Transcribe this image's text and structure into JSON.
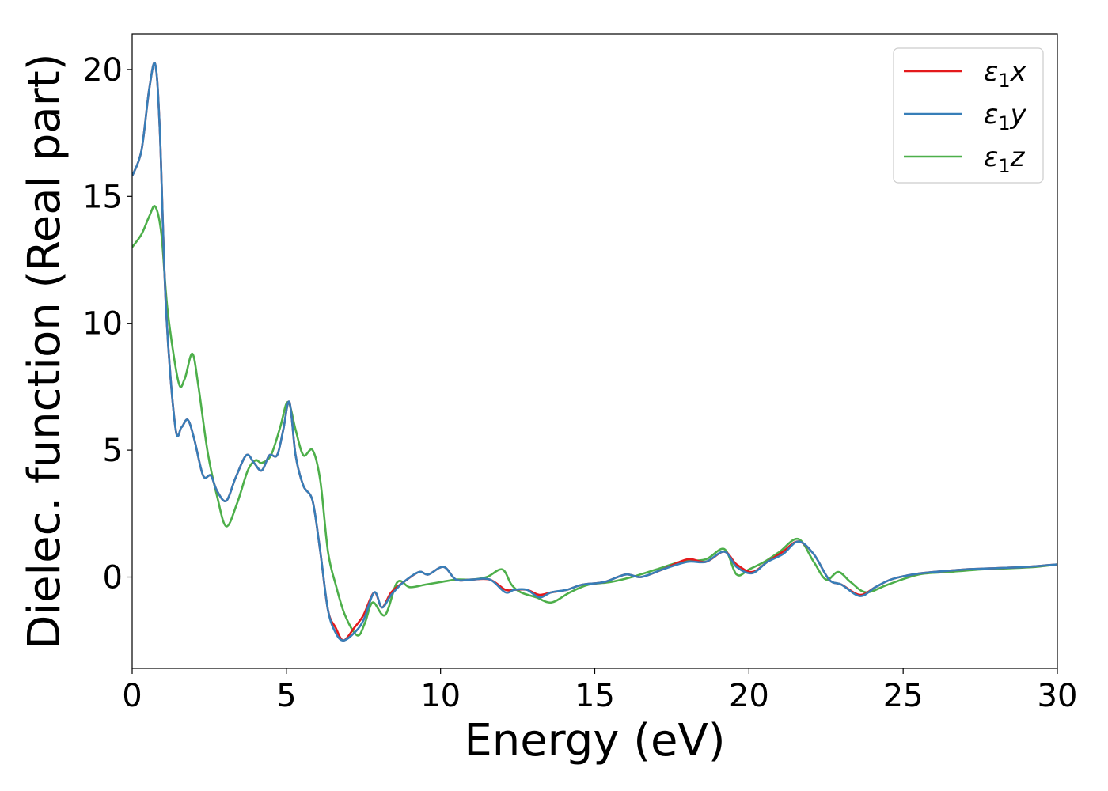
{
  "chart_data": {
    "type": "line",
    "xlabel": "Energy (eV)",
    "ylabel": "Dielec. function (Real part)",
    "xlim": [
      0,
      30
    ],
    "ylim": [
      -3.6,
      21.4
    ],
    "xticks": [
      0,
      5,
      10,
      15,
      20,
      25,
      30
    ],
    "yticks": [
      0,
      5,
      10,
      15,
      20
    ],
    "legend_position": "top-right",
    "grid": false,
    "series": [
      {
        "name": "ε1x",
        "legend_main": "ε",
        "legend_sub": "1",
        "legend_var": "x",
        "color": "#e41a1c",
        "x": [
          0,
          0.3,
          0.55,
          0.75,
          0.9,
          1.1,
          1.4,
          1.6,
          1.8,
          2.0,
          2.3,
          2.55,
          2.75,
          3.05,
          3.35,
          3.7,
          3.95,
          4.2,
          4.45,
          4.7,
          4.9,
          5.1,
          5.3,
          5.55,
          5.85,
          6.1,
          6.35,
          6.6,
          6.85,
          7.2,
          7.5,
          7.85,
          8.1,
          8.4,
          8.8,
          9.3,
          9.6,
          10.1,
          10.5,
          11,
          11.6,
          12.1,
          12.4,
          12.8,
          13.2,
          13.6,
          14.1,
          14.6,
          15.3,
          16,
          16.5,
          17.2,
          18,
          18.6,
          19.2,
          19.6,
          20.1,
          20.6,
          21.1,
          21.6,
          22.1,
          22.6,
          23,
          23.6,
          24.1,
          24.6,
          25.3,
          26,
          27,
          28,
          29,
          30
        ],
        "values": [
          15.8,
          16.8,
          19.2,
          20.2,
          17.5,
          10.5,
          5.9,
          5.9,
          6.2,
          5.5,
          4.0,
          4.0,
          3.4,
          3.0,
          3.9,
          4.8,
          4.5,
          4.2,
          4.8,
          4.8,
          5.8,
          6.9,
          4.8,
          3.6,
          3.0,
          1.0,
          -1.3,
          -2.0,
          -2.5,
          -2.0,
          -1.5,
          -0.6,
          -1.2,
          -0.6,
          -0.2,
          0.2,
          0.1,
          0.4,
          -0.1,
          -0.1,
          -0.1,
          -0.5,
          -0.5,
          -0.5,
          -0.7,
          -0.6,
          -0.5,
          -0.3,
          -0.2,
          0.1,
          0.0,
          0.3,
          0.7,
          0.6,
          1.0,
          0.5,
          0.2,
          0.6,
          1.0,
          1.4,
          0.9,
          -0.1,
          -0.3,
          -0.7,
          -0.4,
          -0.1,
          0.1,
          0.2,
          0.3,
          0.35,
          0.4,
          0.5
        ]
      },
      {
        "name": "ε1y",
        "legend_main": "ε",
        "legend_sub": "1",
        "legend_var": "y",
        "color": "#377eb8",
        "x": [
          0,
          0.3,
          0.55,
          0.75,
          0.9,
          1.1,
          1.4,
          1.6,
          1.8,
          2.0,
          2.3,
          2.55,
          2.75,
          3.05,
          3.35,
          3.7,
          3.95,
          4.2,
          4.45,
          4.7,
          4.9,
          5.1,
          5.3,
          5.55,
          5.85,
          6.1,
          6.35,
          6.6,
          6.85,
          7.2,
          7.5,
          7.85,
          8.1,
          8.4,
          8.8,
          9.3,
          9.6,
          10.1,
          10.5,
          11,
          11.6,
          12.1,
          12.4,
          12.8,
          13.2,
          13.6,
          14.1,
          14.6,
          15.3,
          16,
          16.5,
          17.2,
          18,
          18.6,
          19.2,
          19.6,
          20.1,
          20.6,
          21.1,
          21.6,
          22.1,
          22.6,
          23,
          23.6,
          24.1,
          24.6,
          25.3,
          26,
          27,
          28,
          29,
          30
        ],
        "values": [
          15.8,
          16.8,
          19.2,
          20.2,
          17.5,
          10.5,
          5.9,
          5.9,
          6.2,
          5.5,
          4.0,
          4.0,
          3.4,
          3.0,
          3.9,
          4.8,
          4.5,
          4.2,
          4.8,
          4.8,
          5.8,
          6.9,
          4.8,
          3.6,
          3.0,
          1.0,
          -1.3,
          -2.2,
          -2.5,
          -2.2,
          -1.7,
          -0.6,
          -1.2,
          -0.7,
          -0.2,
          0.2,
          0.1,
          0.4,
          -0.1,
          -0.1,
          -0.1,
          -0.6,
          -0.5,
          -0.5,
          -0.8,
          -0.6,
          -0.5,
          -0.3,
          -0.2,
          0.1,
          0.0,
          0.3,
          0.6,
          0.6,
          1.0,
          0.4,
          0.15,
          0.6,
          0.9,
          1.4,
          0.9,
          -0.1,
          -0.3,
          -0.75,
          -0.4,
          -0.1,
          0.1,
          0.2,
          0.3,
          0.35,
          0.4,
          0.5
        ]
      },
      {
        "name": "ε1z",
        "legend_main": "ε",
        "legend_sub": "1",
        "legend_var": "z",
        "color": "#4daf4a",
        "x": [
          0,
          0.3,
          0.55,
          0.75,
          0.95,
          1.15,
          1.5,
          1.7,
          1.95,
          2.15,
          2.45,
          2.75,
          3.05,
          3.4,
          3.75,
          4.0,
          4.2,
          4.5,
          4.8,
          5.05,
          5.3,
          5.55,
          5.85,
          6.1,
          6.35,
          6.6,
          6.9,
          7.3,
          7.55,
          7.8,
          8.2,
          8.6,
          9.0,
          9.5,
          10.0,
          10.5,
          11.0,
          11.5,
          12.0,
          12.3,
          12.6,
          13.1,
          13.6,
          14.2,
          14.8,
          15.5,
          16.2,
          17.0,
          17.8,
          18.6,
          19.2,
          19.6,
          20.0,
          20.5,
          21.0,
          21.6,
          22.1,
          22.5,
          22.9,
          23.3,
          23.8,
          24.5,
          25.5,
          26.5,
          27.5,
          28.5,
          29.3,
          30
        ],
        "values": [
          13.0,
          13.5,
          14.2,
          14.6,
          13.5,
          10.5,
          7.7,
          7.8,
          8.8,
          7.5,
          4.9,
          3.2,
          2.0,
          2.9,
          4.2,
          4.6,
          4.5,
          4.8,
          5.9,
          6.9,
          5.8,
          4.8,
          5.0,
          3.8,
          1.0,
          -0.3,
          -1.5,
          -2.3,
          -1.8,
          -1.0,
          -1.5,
          -0.2,
          -0.4,
          -0.3,
          -0.2,
          -0.1,
          -0.1,
          0.0,
          0.3,
          -0.3,
          -0.6,
          -0.8,
          -1.0,
          -0.6,
          -0.3,
          -0.2,
          0.0,
          0.3,
          0.6,
          0.7,
          1.1,
          0.1,
          0.3,
          0.6,
          1.0,
          1.5,
          0.6,
          -0.1,
          0.2,
          -0.2,
          -0.6,
          -0.3,
          0.1,
          0.2,
          0.3,
          0.35,
          0.4,
          0.5
        ]
      }
    ]
  }
}
